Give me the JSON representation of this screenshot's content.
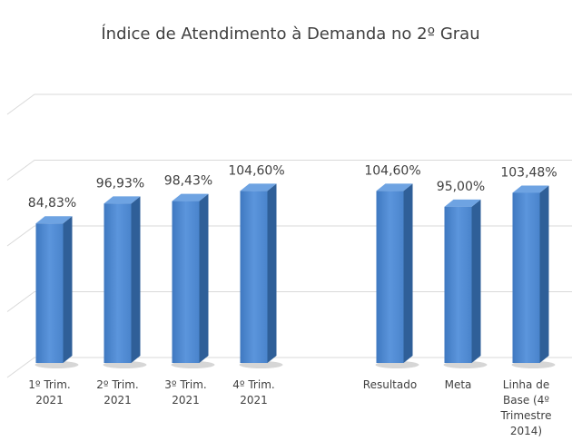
{
  "chart_data": {
    "type": "bar3d",
    "title": "Índice de Atendimento à Demanda no 2º Grau",
    "categories": [
      "1º Trim. 2021",
      "2º Trim. 2021",
      "3º Trim. 2021",
      "4º Trim. 2021",
      null,
      "Resultado",
      "Meta",
      "Linha de Base (4º Trimestre 2014)"
    ],
    "values": [
      84.83,
      96.93,
      98.43,
      104.6,
      null,
      104.6,
      95.0,
      103.48
    ],
    "value_labels": [
      "84,83%",
      "96,93%",
      "98,43%",
      "104,60%",
      null,
      "104,60%",
      "95,00%",
      "103,48%"
    ],
    "color": "#4a86d0",
    "ylim": [
      0,
      160
    ],
    "yticks": [
      0,
      40,
      80,
      120,
      160
    ],
    "show_ytick_labels": false,
    "grid": true
  }
}
